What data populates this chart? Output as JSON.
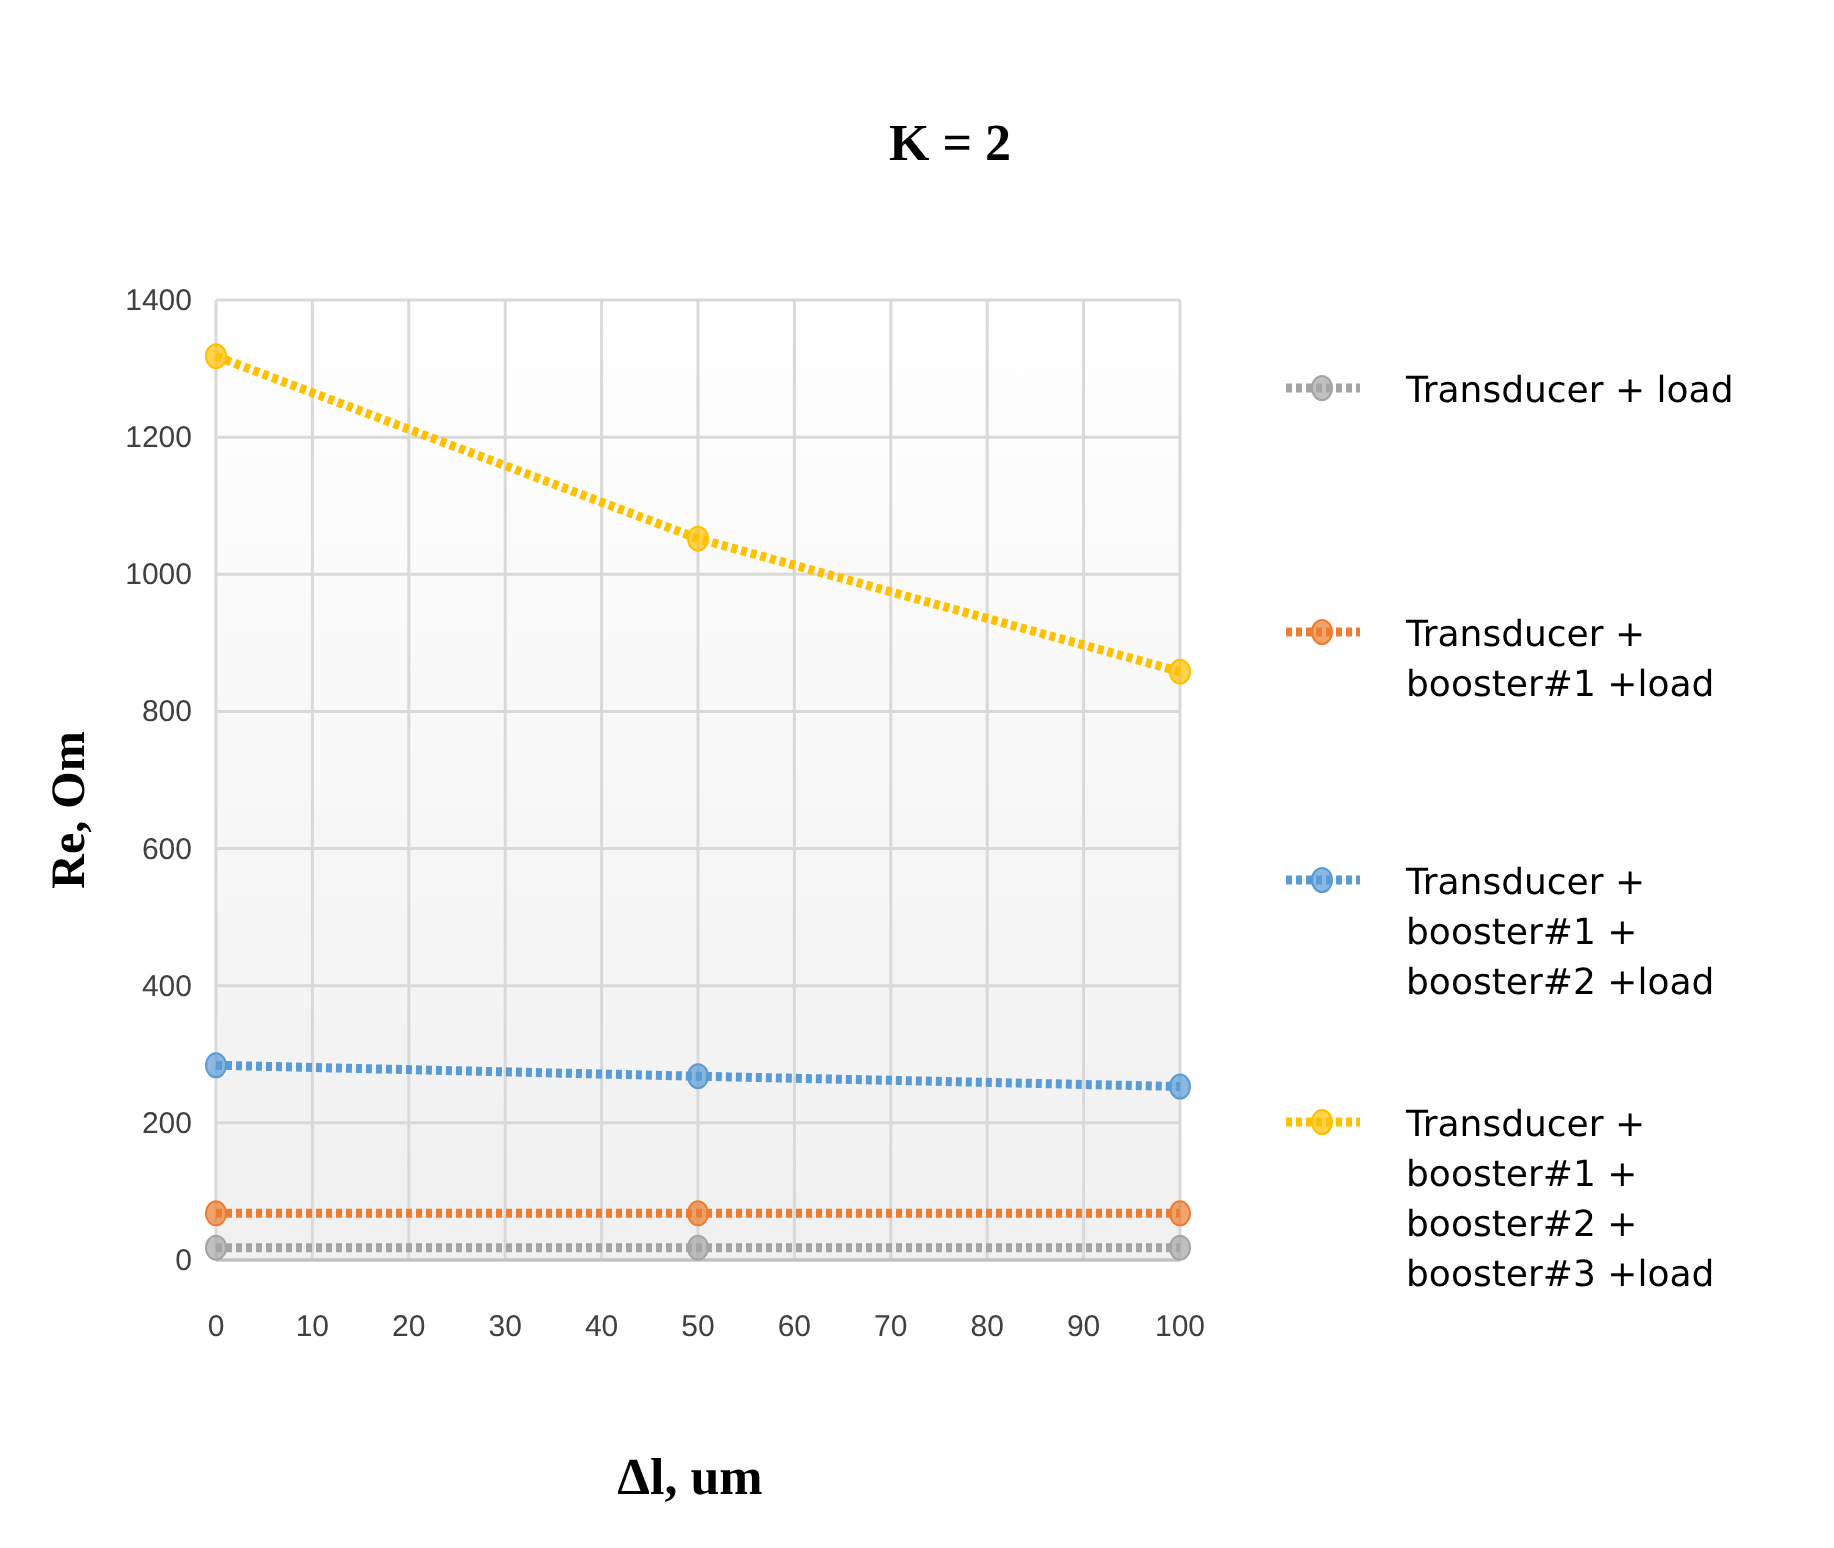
{
  "chart_data": {
    "type": "line",
    "title": "K = 2",
    "xlabel": "Δl,   um",
    "ylabel": "Re,  Om",
    "x": [
      0,
      50,
      100
    ],
    "series": [
      {
        "name": "Transducer + load",
        "color": "#a5a5a5",
        "values": [
          18,
          18,
          18
        ]
      },
      {
        "name": "Transducer + booster#1 +load",
        "color": "#ed7d31",
        "values": [
          68,
          68,
          68
        ]
      },
      {
        "name": "Transducer + booster#1 + booster#2 +load",
        "color": "#5b9bd5",
        "values": [
          284,
          268,
          253
        ]
      },
      {
        "name": "Transducer + booster#1 + booster#2 + booster#3 +load",
        "color": "#ffc000",
        "values": [
          1318,
          1052,
          858
        ]
      }
    ],
    "xlim": [
      0,
      100
    ],
    "xticks": [
      0,
      10,
      20,
      30,
      40,
      50,
      60,
      70,
      80,
      90,
      100
    ],
    "ylim": [
      0,
      1400
    ],
    "yticks": [
      0,
      200,
      400,
      600,
      800,
      1000,
      1200,
      1400
    ],
    "grid": true,
    "legend": "right",
    "marker": "circle",
    "line_style": "dotted"
  }
}
